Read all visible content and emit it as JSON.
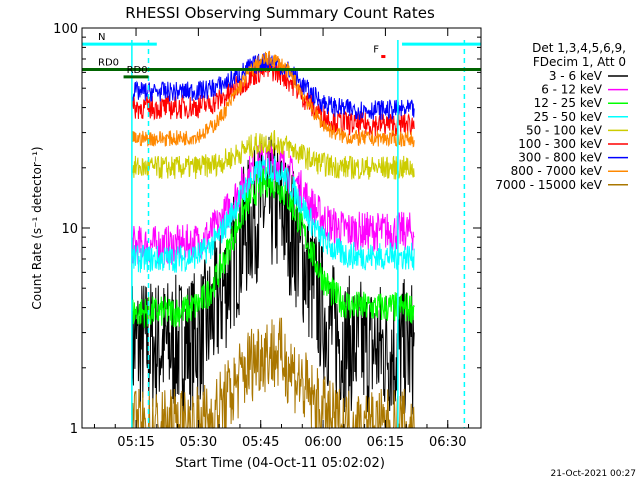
{
  "chart_data": {
    "type": "line",
    "title": "RHESSI Observing Summary Count Rates",
    "xlabel": "Start Time (04-Oct-11 05:02:02)",
    "ylabel": "Count Rate (s⁻¹ detector⁻¹)",
    "y_scale": "log",
    "ylim": [
      1,
      100
    ],
    "xlim_minutes": [
      0,
      96
    ],
    "x_ticks": [
      {
        "t": 13,
        "label": "05:15"
      },
      {
        "t": 28,
        "label": "05:30"
      },
      {
        "t": 43,
        "label": "05:45"
      },
      {
        "t": 58,
        "label": "06:00"
      },
      {
        "t": 73,
        "label": "06:15"
      },
      {
        "t": 88,
        "label": "06:30"
      }
    ],
    "y_ticks": [
      {
        "v": 1,
        "label": "1"
      },
      {
        "v": 10,
        "label": "10"
      },
      {
        "v": 100,
        "label": "100"
      }
    ],
    "legend_header": [
      "Det 1,3,4,5,6,9,",
      "FDecim 1, Att 0"
    ],
    "footer_stamp": "21-Oct-2021 00:27",
    "flags": [
      {
        "label": "N",
        "color": "#00ffff",
        "t_start": 0,
        "t_end": 18,
        "t2_start": 77,
        "t2_end": 96,
        "level": 83
      },
      {
        "label": "F",
        "color": "#ff0000",
        "t_start": 72,
        "t_end": 73,
        "level": 72
      },
      {
        "label": "RD0",
        "color": "#006400",
        "t_start": 0,
        "t_end": 96,
        "level": 62
      },
      {
        "label": "RD0",
        "color": "#006400",
        "t_start": 10,
        "t_end": 16,
        "level": 57
      }
    ],
    "night_lines": [
      {
        "t": 12,
        "style": "solid"
      },
      {
        "t": 16,
        "style": "dashed"
      },
      {
        "t": 76,
        "style": "solid"
      },
      {
        "t": 92,
        "style": "dashed"
      }
    ],
    "data_window": [
      12,
      80
    ],
    "series": [
      {
        "name": "3 - 6 keV",
        "color": "#000000",
        "peak_t": 45,
        "peak": 13,
        "base_in": 2.6,
        "base_out": 2.5,
        "noise": 0.35
      },
      {
        "name": "6 - 12 keV",
        "color": "#ff00ff",
        "peak_t": 45,
        "peak": 22,
        "base_in": 8.2,
        "base_out": 9.6,
        "noise": 0.1
      },
      {
        "name": "12 - 25 keV",
        "color": "#00ff00",
        "peak_t": 45,
        "peak": 17,
        "base_in": 3.8,
        "base_out": 4.0,
        "noise": 0.08
      },
      {
        "name": "25 - 50 keV",
        "color": "#00ffff",
        "peak_t": 45,
        "peak": 20,
        "base_in": 7.0,
        "base_out": 7.2,
        "noise": 0.07
      },
      {
        "name": "50 - 100 keV",
        "color": "#cccc00",
        "peak_t": 45,
        "peak": 27,
        "base_in": 20,
        "base_out": 20,
        "noise": 0.06
      },
      {
        "name": "100 - 300 keV",
        "color": "#ff0000",
        "peak_t": 45,
        "peak": 62,
        "base_in": 40,
        "base_out": 33,
        "noise": 0.06
      },
      {
        "name": "300 - 800 keV",
        "color": "#0000ff",
        "peak_t": 45,
        "peak": 68,
        "base_in": 48,
        "base_out": 39,
        "noise": 0.05
      },
      {
        "name": "800 - 7000 keV",
        "color": "#ff8800",
        "peak_t": 45,
        "peak": 70,
        "base_in": 28,
        "base_out": 28,
        "noise": 0.04
      },
      {
        "name": "7000 - 15000 keV",
        "color": "#aa7700",
        "peak_t": 45,
        "peak": 2.4,
        "base_in": 1.0,
        "base_out": 1.0,
        "noise": 0.2
      }
    ]
  }
}
